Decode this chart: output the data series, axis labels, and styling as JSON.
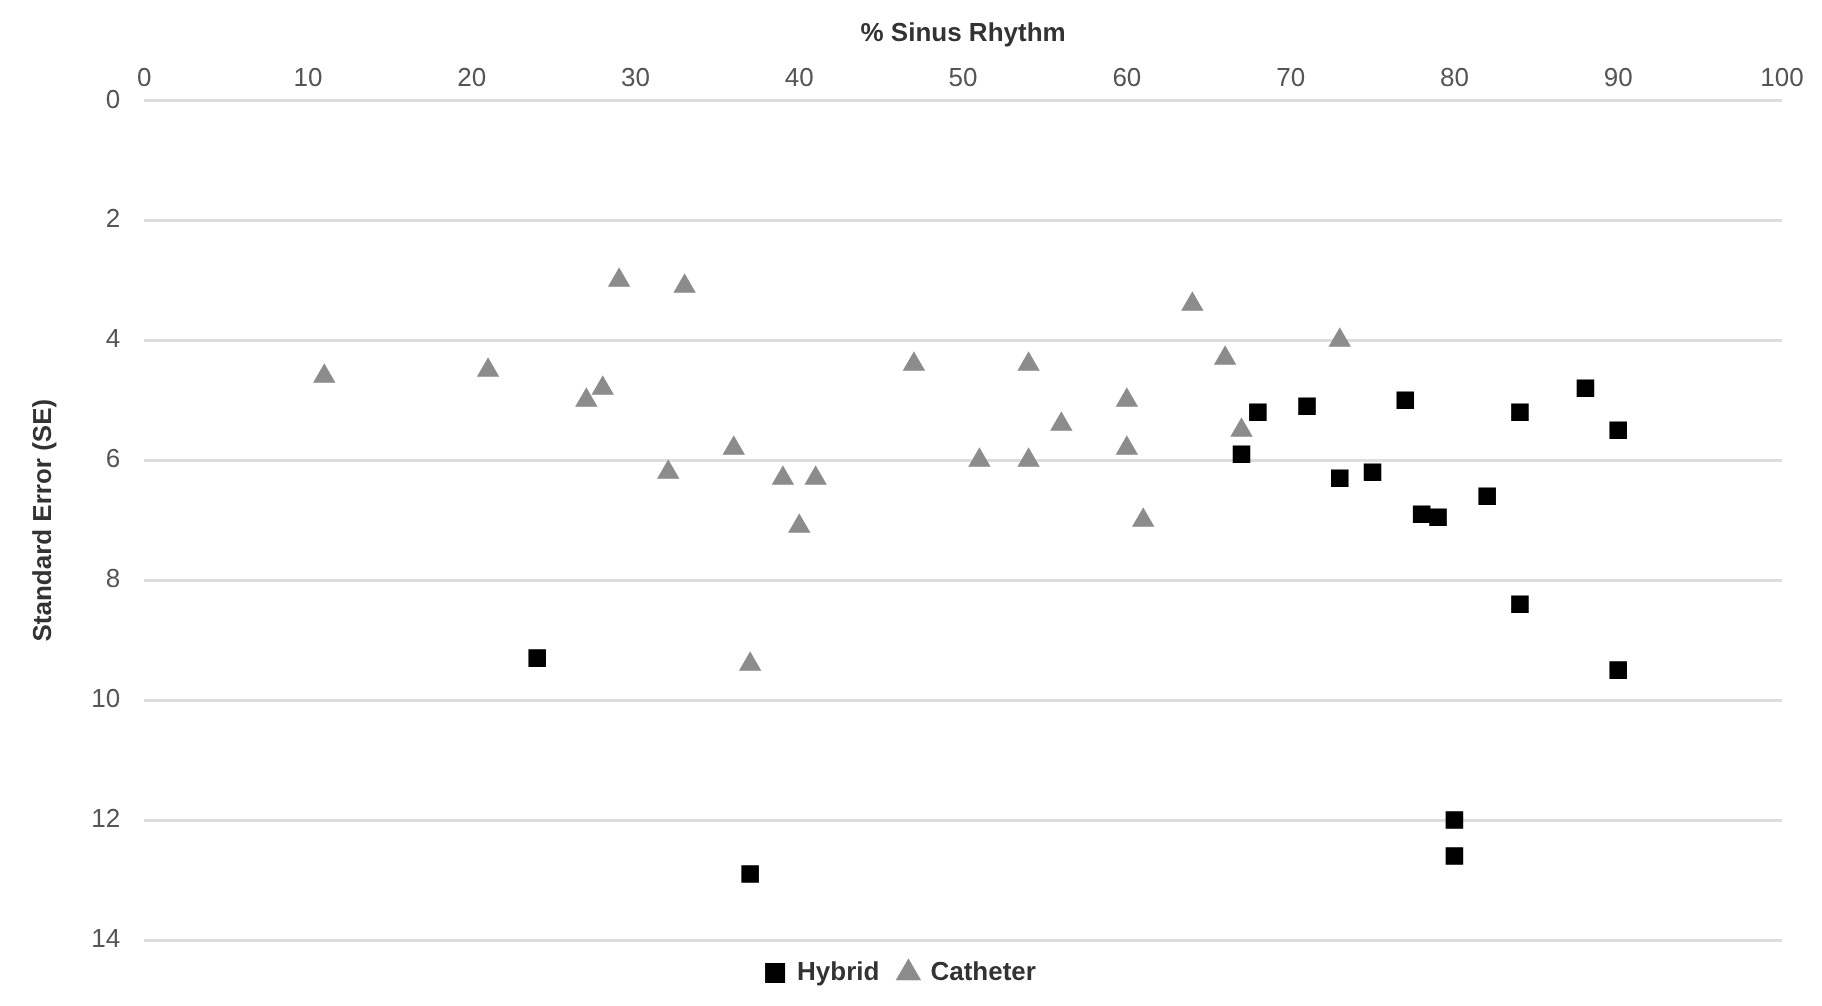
{
  "chart_data": {
    "type": "scatter",
    "xlabel": "% Sinus Rhythm",
    "ylabel": "Standard Error (SE)",
    "xlim": [
      0,
      100
    ],
    "xticks": [
      0,
      10,
      20,
      30,
      40,
      50,
      60,
      70,
      80,
      90,
      100
    ],
    "ylim": [
      14,
      0
    ],
    "yticks": [
      0,
      2,
      4,
      6,
      8,
      10,
      12,
      14
    ],
    "grid": "y",
    "legend": "bottom",
    "series": [
      {
        "name": "Hybrid",
        "color": "#000000",
        "marker": "square",
        "x": [
          24,
          37,
          67,
          68,
          71,
          73,
          75,
          77,
          78,
          79,
          82,
          84,
          84,
          88,
          90,
          90,
          80,
          80
        ],
        "values": [
          9.3,
          12.9,
          5.9,
          5.2,
          5.1,
          6.3,
          6.2,
          5.0,
          6.9,
          6.95,
          6.6,
          5.2,
          8.4,
          4.8,
          5.5,
          9.5,
          12.0,
          12.6
        ]
      },
      {
        "name": "Catheter",
        "color": "#8c8c8c",
        "marker": "triangle",
        "x": [
          11,
          21,
          27,
          28,
          29,
          32,
          33,
          36,
          37,
          39,
          40,
          41,
          47,
          51,
          54,
          54,
          56,
          60,
          60,
          61,
          64,
          66,
          67,
          73
        ],
        "values": [
          4.6,
          4.5,
          5.0,
          4.8,
          3.0,
          6.2,
          3.1,
          5.8,
          9.4,
          6.3,
          7.1,
          6.3,
          4.4,
          6.0,
          4.4,
          6.0,
          5.4,
          5.0,
          5.8,
          7.0,
          3.4,
          4.3,
          5.5,
          4.0
        ]
      }
    ]
  }
}
